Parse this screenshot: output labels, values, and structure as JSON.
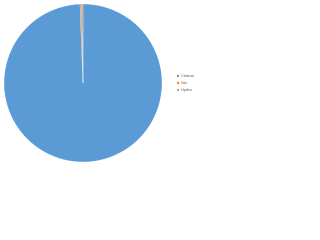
{
  "chart_data": {
    "type": "pie",
    "categories": [
      "Charon",
      "Nix",
      "Hydra"
    ],
    "values": [
      99.4,
      0.3,
      0.3
    ],
    "colors": [
      "#5b9bd5",
      "#ed7d31",
      "#a5a5a5"
    ],
    "legend": "right"
  }
}
